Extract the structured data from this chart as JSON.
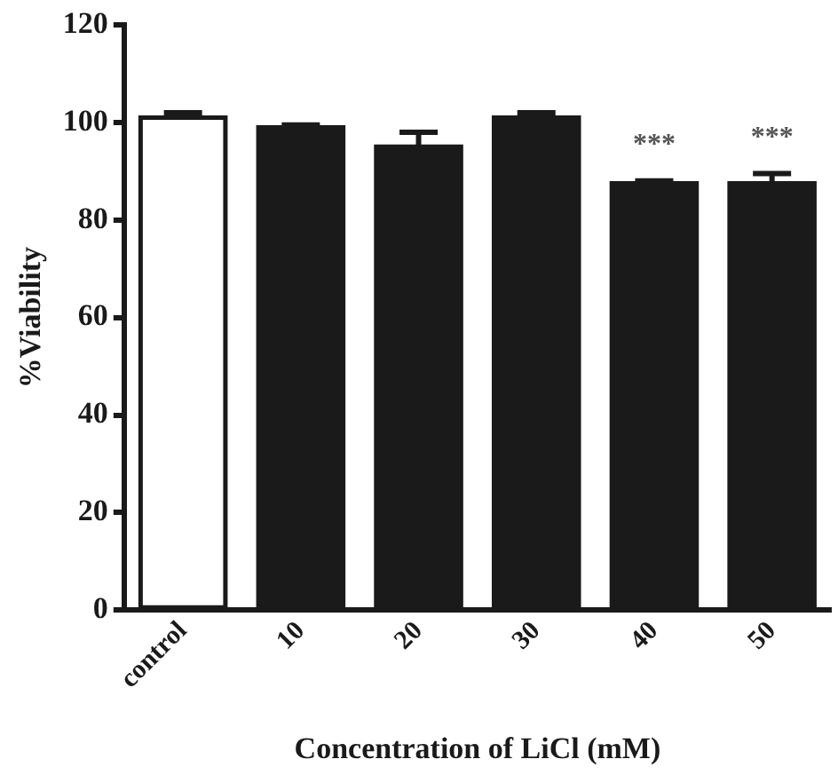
{
  "chart_data": {
    "type": "bar",
    "xlabel": "Concentration of LiCl (mM)",
    "ylabel": "%Viability",
    "categories": [
      "control",
      "10",
      "20",
      "30",
      "40",
      "50"
    ],
    "values": [
      101,
      99,
      95,
      101,
      87.5,
      87.5
    ],
    "errors": [
      1,
      0.5,
      3,
      1,
      0.5,
      2
    ],
    "colors": [
      "#ffffff",
      "#1a1a1a",
      "#1a1a1a",
      "#1a1a1a",
      "#1a1a1a",
      "#1a1a1a"
    ],
    "ylim": [
      0,
      120
    ],
    "yticks": [
      0,
      20,
      40,
      60,
      80,
      100,
      120
    ],
    "grid": false,
    "legend": false,
    "annotations": [
      {
        "text": "***",
        "x": "40",
        "y": 88
      },
      {
        "text": "***",
        "x": "50",
        "y": 89.5
      }
    ]
  }
}
